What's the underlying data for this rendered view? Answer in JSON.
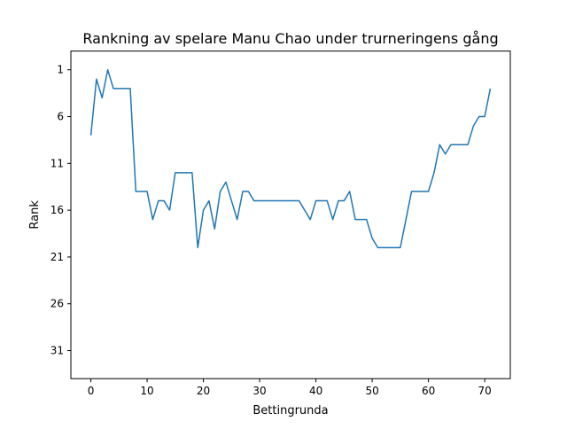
{
  "chart_data": {
    "type": "line",
    "title": "Rankning av spelare Manu Chao under trurneringens gång",
    "xlabel": "Bettingrunda",
    "ylabel": "Rank",
    "xlim": [
      -3.55,
      74.55
    ],
    "ylim": [
      34,
      -1
    ],
    "y_inverted": true,
    "xticks": [
      0,
      10,
      20,
      30,
      40,
      50,
      60,
      70
    ],
    "yticks": [
      1,
      6,
      11,
      16,
      21,
      26,
      31
    ],
    "grid": false,
    "line_color": "#1f77b4",
    "series": [
      {
        "x": [
          0,
          1,
          2,
          3,
          4,
          5,
          6,
          7,
          8,
          9,
          10,
          11,
          12,
          13,
          14,
          15,
          16,
          17,
          18,
          19,
          20,
          21,
          22,
          23,
          24,
          25,
          26,
          27,
          28,
          29,
          30,
          31,
          32,
          33,
          34,
          35,
          36,
          37,
          38,
          39,
          40,
          41,
          42,
          43,
          44,
          45,
          46,
          47,
          48,
          49,
          50,
          51,
          52,
          53,
          54,
          55,
          56,
          57,
          58,
          59,
          60,
          61,
          62,
          63,
          64,
          65,
          66,
          67,
          68,
          69,
          70,
          71
        ],
        "values": [
          8,
          2,
          4,
          1,
          3,
          3,
          3,
          3,
          14,
          14,
          14,
          17,
          15,
          15,
          16,
          12,
          12,
          12,
          12,
          20,
          16,
          15,
          18,
          14,
          13,
          15,
          17,
          14,
          14,
          15,
          15,
          15,
          15,
          15,
          15,
          15,
          15,
          15,
          16,
          17,
          15,
          15,
          15,
          17,
          15,
          15,
          14,
          17,
          17,
          17,
          19,
          20,
          20,
          20,
          20,
          20,
          17,
          14,
          14,
          14,
          14,
          12,
          9,
          10,
          9,
          9,
          9,
          9,
          7,
          6,
          6,
          3
        ]
      }
    ]
  }
}
